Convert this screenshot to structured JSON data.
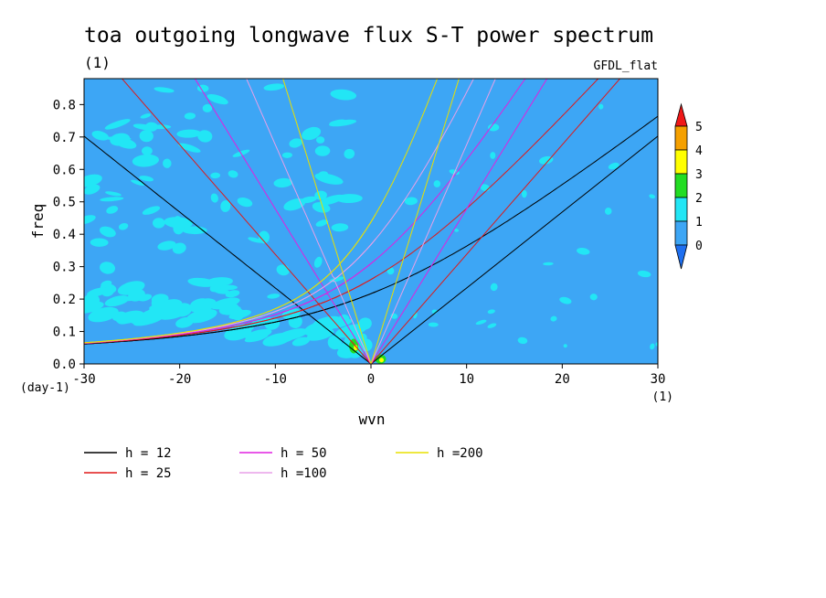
{
  "chart_data": {
    "type": "heatmap",
    "title": "toa outgoing longwave flux S-T power spectrum",
    "subtitle": "(1)",
    "source_label": "GFDL_flat",
    "xlabel": "wvn",
    "ylabel": "freq",
    "x_unit": "(1)",
    "y_unit": "(day-1)",
    "xlim": [
      -30,
      30
    ],
    "ylim": [
      0,
      0.88
    ],
    "x_ticks": [
      -30,
      -20,
      -10,
      0,
      10,
      20,
      30
    ],
    "y_ticks": [
      0.0,
      0.1,
      0.2,
      0.3,
      0.4,
      0.5,
      0.6,
      0.7,
      0.8
    ],
    "x_tick_labels": [
      "-30",
      "-20",
      "-10",
      "0",
      "10",
      "20",
      "30"
    ],
    "y_tick_labels": [
      "0.0",
      "0.1",
      "0.2",
      "0.3",
      "0.4",
      "0.5",
      "0.6",
      "0.7",
      "0.8"
    ],
    "colorbar": {
      "levels": [
        0,
        1,
        2,
        3,
        4,
        5
      ],
      "labels": [
        "0",
        "1",
        "2",
        "3",
        "4",
        "5"
      ],
      "colors": [
        "#1e6ff0",
        "#3da6f5",
        "#22e6f5",
        "#22dd22",
        "#ffff00",
        "#f5a000",
        "#f01818"
      ]
    },
    "dispersion_curves": [
      {
        "name": "h = 12",
        "h": 12,
        "color": "#000000"
      },
      {
        "name": "h = 25",
        "h": 25,
        "color": "#e01818"
      },
      {
        "name": "h = 50",
        "h": 50,
        "color": "#e020e0"
      },
      {
        "name": "h =100",
        "h": 100,
        "color": "#e8a0e8"
      },
      {
        "name": "h =200",
        "h": 200,
        "color": "#e8e000"
      }
    ]
  }
}
